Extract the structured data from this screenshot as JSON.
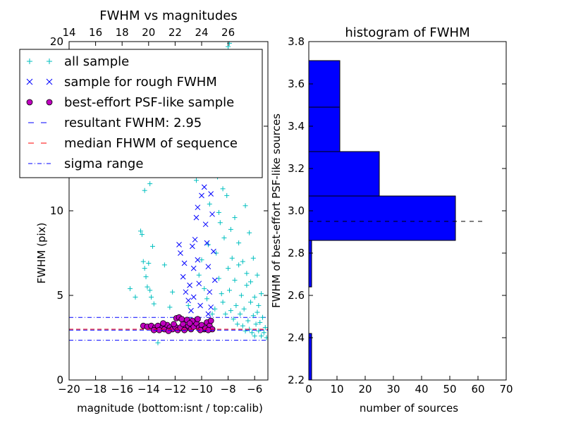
{
  "chart_data": [
    {
      "type": "scatter",
      "title": "FWHM vs magnitudes",
      "xlabel": "magnitude (bottom:isnt / top:calib)",
      "ylabel": "FWHM (pix)",
      "xlim": [
        -20,
        -5
      ],
      "ylim": [
        0,
        20
      ],
      "xticks": [
        -20,
        -18,
        -16,
        -14,
        -12,
        -10,
        -8,
        -6
      ],
      "xtick_labels": [
        "−20",
        "−18",
        "−16",
        "−14",
        "−12",
        "−10",
        "−8",
        "−6"
      ],
      "yticks": [
        0,
        5,
        10,
        15,
        20
      ],
      "ytick_labels": [
        "0",
        "5",
        "10",
        "15",
        "20"
      ],
      "top_axis": {
        "ticks": [
          14,
          16,
          18,
          20,
          22,
          24,
          26
        ],
        "tick_labels": [
          "14",
          "16",
          "18",
          "20",
          "22",
          "24",
          "26"
        ],
        "offset": 34
      },
      "legend": {
        "placement": "upper-left",
        "entries": [
          {
            "label": "all sample",
            "marker": "plus",
            "color": "#00bfbf"
          },
          {
            "label": "sample for rough FWHM",
            "marker": "x",
            "color": "#0000ff"
          },
          {
            "label": "best-effort PSF-like sample",
            "marker": "circle",
            "color": "#bf00bf"
          },
          {
            "label": "resultant FWHM: 2.95",
            "marker": "dashed",
            "color": "#0000ff"
          },
          {
            "label": "median FHWM of sequence",
            "marker": "dashed",
            "color": "#ff0000"
          },
          {
            "label": "sigma range",
            "marker": "dashdot",
            "color": "#0000ff"
          }
        ]
      },
      "lines": {
        "resultant_fwhm": 2.95,
        "median_fwhm": 3.0,
        "sigma_range": [
          2.35,
          3.7
        ]
      },
      "series": [
        {
          "name": "all sample",
          "marker": "plus",
          "color": "#00bfbf",
          "points": [
            [
              -15.4,
              5.4
            ],
            [
              -15.0,
              4.9
            ],
            [
              -14.6,
              8.8
            ],
            [
              -14.5,
              8.6
            ],
            [
              -14.4,
              7.0
            ],
            [
              -14.3,
              6.6
            ],
            [
              -14.2,
              6.1
            ],
            [
              -14.1,
              5.5
            ],
            [
              -14.0,
              6.9
            ],
            [
              -13.9,
              5.3
            ],
            [
              -13.8,
              4.9
            ],
            [
              -13.7,
              7.9
            ],
            [
              -13.6,
              4.5
            ],
            [
              -14.3,
              11.2
            ],
            [
              -13.9,
              11.6
            ],
            [
              -12.8,
              6.8
            ],
            [
              -12.4,
              4.3
            ],
            [
              -12.2,
              5.2
            ],
            [
              -11.6,
              3.6
            ],
            [
              -11.0,
              4.4
            ],
            [
              -10.6,
              13.1
            ],
            [
              -10.4,
              11.8
            ],
            [
              -13.3,
              2.2
            ],
            [
              -10.2,
              6.2
            ],
            [
              -10.0,
              7.1
            ],
            [
              -9.8,
              5.4
            ],
            [
              -9.6,
              4.8
            ],
            [
              -9.5,
              8.0
            ],
            [
              -9.4,
              10.4
            ],
            [
              -9.2,
              3.9
            ],
            [
              -9.0,
              4.2
            ],
            [
              -8.9,
              7.5
            ],
            [
              -8.8,
              12.0
            ],
            [
              -8.7,
              6.0
            ],
            [
              -8.6,
              9.3
            ],
            [
              -8.5,
              5.1
            ],
            [
              -8.4,
              4.6
            ],
            [
              -8.3,
              8.4
            ],
            [
              -8.2,
              3.9
            ],
            [
              -8.1,
              10.9
            ],
            [
              -8.0,
              6.6
            ],
            [
              -7.9,
              5.3
            ],
            [
              -7.8,
              4.1
            ],
            [
              -7.7,
              7.2
            ],
            [
              -7.6,
              3.6
            ],
            [
              -7.5,
              5.9
            ],
            [
              -7.4,
              4.4
            ],
            [
              -7.3,
              3.3
            ],
            [
              -7.2,
              6.8
            ],
            [
              -7.1,
              3.9
            ],
            [
              -7.0,
              5.0
            ],
            [
              -6.9,
              3.2
            ],
            [
              -6.8,
              4.2
            ],
            [
              -6.7,
              2.9
            ],
            [
              -6.6,
              5.6
            ],
            [
              -6.5,
              3.5
            ],
            [
              -6.4,
              3.0
            ],
            [
              -6.3,
              4.6
            ],
            [
              -6.2,
              2.8
            ],
            [
              -6.1,
              3.8
            ],
            [
              -6.0,
              2.6
            ],
            [
              -5.9,
              3.3
            ],
            [
              -5.8,
              4.0
            ],
            [
              -5.7,
              2.9
            ],
            [
              -5.6,
              3.4
            ],
            [
              -5.5,
              2.6
            ],
            [
              -5.4,
              3.7
            ],
            [
              -5.3,
              2.8
            ],
            [
              -5.2,
              3.1
            ],
            [
              -5.1,
              2.5
            ],
            [
              -9.1,
              13.5
            ],
            [
              -8.9,
              15.2
            ],
            [
              -8.6,
              17.0
            ],
            [
              -8.3,
              18.6
            ],
            [
              -8.0,
              19.7
            ],
            [
              -7.9,
              19.9
            ],
            [
              -7.6,
              16.5
            ],
            [
              -7.3,
              14.2
            ],
            [
              -7.0,
              12.5
            ],
            [
              -6.7,
              10.3
            ],
            [
              -6.4,
              8.7
            ],
            [
              -6.1,
              7.2
            ],
            [
              -5.8,
              6.2
            ],
            [
              -5.5,
              5.1
            ],
            [
              -8.7,
              9.9
            ],
            [
              -8.4,
              11.3
            ],
            [
              -7.8,
              8.9
            ],
            [
              -7.5,
              9.6
            ],
            [
              -7.2,
              8.1
            ],
            [
              -6.9,
              7.0
            ],
            [
              -6.6,
              6.3
            ],
            [
              -6.3,
              5.8
            ],
            [
              -6.0,
              4.9
            ],
            [
              -5.7,
              4.4
            ]
          ]
        },
        {
          "name": "sample for rough FWHM",
          "marker": "x",
          "color": "#0000ff",
          "points": [
            [
              -11.7,
              8.0
            ],
            [
              -11.6,
              7.5
            ],
            [
              -11.4,
              6.1
            ],
            [
              -11.2,
              5.2
            ],
            [
              -11.0,
              4.7
            ],
            [
              -10.8,
              4.1
            ],
            [
              -10.6,
              6.6
            ],
            [
              -10.5,
              8.3
            ],
            [
              -10.4,
              9.6
            ],
            [
              -10.3,
              7.1
            ],
            [
              -10.2,
              5.7
            ],
            [
              -10.1,
              4.4
            ],
            [
              -10.0,
              10.9
            ],
            [
              -9.9,
              12.3
            ],
            [
              -9.8,
              11.4
            ],
            [
              -9.7,
              9.2
            ],
            [
              -9.6,
              8.1
            ],
            [
              -9.5,
              6.7
            ],
            [
              -9.4,
              5.2
            ],
            [
              -9.3,
              4.3
            ],
            [
              -10.1,
              13.4
            ],
            [
              -9.9,
              14.4
            ],
            [
              -9.8,
              15.1
            ],
            [
              -9.6,
              14.0
            ],
            [
              -9.4,
              12.8
            ],
            [
              -9.3,
              11.0
            ],
            [
              -9.2,
              9.8
            ],
            [
              -9.1,
              7.6
            ],
            [
              -9.0,
              5.9
            ],
            [
              -9.5,
              3.9
            ],
            [
              -10.6,
              4.9
            ],
            [
              -10.9,
              5.6
            ],
            [
              -11.3,
              6.9
            ],
            [
              -10.7,
              7.9
            ],
            [
              -10.3,
              10.2
            ]
          ]
        },
        {
          "name": "best-effort PSF-like sample",
          "marker": "circle",
          "color": "#bf00bf",
          "points": [
            [
              -14.4,
              3.2
            ],
            [
              -14.1,
              3.15
            ],
            [
              -13.8,
              3.2
            ],
            [
              -13.5,
              3.1
            ],
            [
              -13.3,
              3.2
            ],
            [
              -13.0,
              3.05
            ],
            [
              -12.8,
              3.0
            ],
            [
              -12.6,
              3.25
            ],
            [
              -12.4,
              3.1
            ],
            [
              -12.2,
              3.0
            ],
            [
              -12.0,
              3.15
            ],
            [
              -11.8,
              2.95
            ],
            [
              -11.6,
              3.1
            ],
            [
              -11.4,
              3.3
            ],
            [
              -11.2,
              3.05
            ],
            [
              -11.0,
              3.2
            ],
            [
              -10.8,
              3.0
            ],
            [
              -10.6,
              3.15
            ],
            [
              -10.4,
              3.35
            ],
            [
              -10.2,
              3.1
            ],
            [
              -10.0,
              3.25
            ],
            [
              -9.8,
              3.0
            ],
            [
              -9.6,
              3.4
            ],
            [
              -9.4,
              3.2
            ],
            [
              -9.3,
              3.5
            ],
            [
              -9.2,
              3.0
            ],
            [
              -11.9,
              3.65
            ],
            [
              -11.7,
              3.7
            ],
            [
              -11.5,
              3.6
            ],
            [
              -11.1,
              3.55
            ],
            [
              -10.7,
              3.5
            ],
            [
              -10.3,
              3.6
            ],
            [
              -12.9,
              3.35
            ],
            [
              -13.6,
              2.95
            ],
            [
              -12.5,
              2.9
            ],
            [
              -11.3,
              2.95
            ],
            [
              -10.9,
              3.35
            ],
            [
              -10.1,
              2.95
            ],
            [
              -9.7,
              3.05
            ],
            [
              -9.5,
              2.95
            ],
            [
              -13.2,
              2.95
            ],
            [
              -12.1,
              3.3
            ]
          ]
        }
      ]
    },
    {
      "type": "bar",
      "orientation": "horizontal",
      "title": "histogram of FWHM",
      "xlabel": "number of sources",
      "ylabel": "FWHM of best-effort PSF-like sources",
      "xlim": [
        0,
        70
      ],
      "ylim": [
        2.2,
        3.8
      ],
      "xticks": [
        0,
        10,
        20,
        30,
        40,
        50,
        60,
        70
      ],
      "xtick_labels": [
        "0",
        "10",
        "20",
        "30",
        "40",
        "50",
        "60",
        "70"
      ],
      "yticks": [
        2.2,
        2.4,
        2.6,
        2.8,
        3.0,
        3.2,
        3.4,
        3.6,
        3.8
      ],
      "ytick_labels": [
        "2.2",
        "2.4",
        "2.6",
        "2.8",
        "3.0",
        "3.2",
        "3.4",
        "3.6",
        "3.8"
      ],
      "bar_color": "#0000ff",
      "bins": [
        {
          "low": 2.2,
          "high": 2.42,
          "count": 1
        },
        {
          "low": 2.64,
          "high": 2.86,
          "count": 1
        },
        {
          "low": 2.86,
          "high": 3.07,
          "count": 52
        },
        {
          "low": 3.07,
          "high": 3.28,
          "count": 25
        },
        {
          "low": 3.28,
          "high": 3.49,
          "count": 11
        },
        {
          "low": 3.49,
          "high": 3.71,
          "count": 11
        }
      ],
      "reference_line": {
        "y": 2.95,
        "x_end": 63,
        "style": "dashed",
        "color": "#000000"
      }
    }
  ]
}
